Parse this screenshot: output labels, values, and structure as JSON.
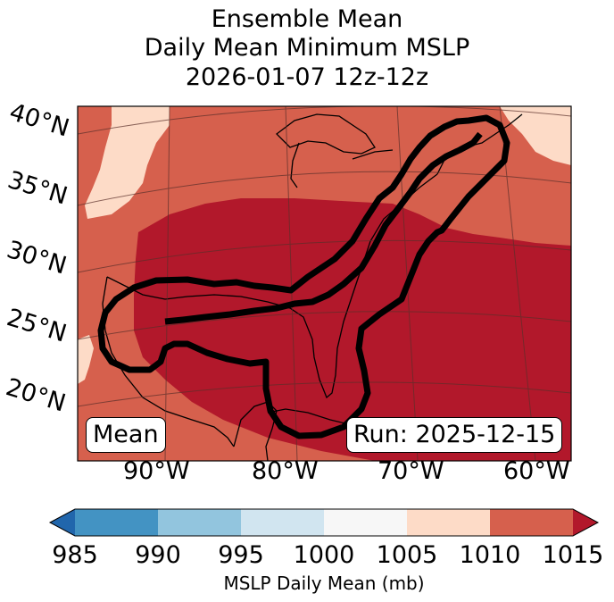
{
  "title": {
    "line1": "Ensemble Mean",
    "line2": "Daily Mean Minimum MSLP",
    "line3": "2026-01-07 12z-12z"
  },
  "map": {
    "latitude_labels": [
      "40°N",
      "35°N",
      "30°N",
      "25°N",
      "20°N"
    ],
    "longitude_labels": [
      "90°W",
      "80°W",
      "70°W",
      "60°W"
    ],
    "mean_box": "Mean",
    "run_box": "Run: 2025-12-15",
    "field_colors": {
      "1005_1010": "#fddbc7",
      "1010_1015": "#d6604d",
      "above_1015": "#b2182b"
    },
    "contour_color": "#000000"
  },
  "colorbar": {
    "ticks": [
      "985",
      "990",
      "995",
      "1000",
      "1005",
      "1010",
      "1015"
    ],
    "label": "MSLP Daily Mean (mb)",
    "bins": [
      {
        "range": "below 985",
        "color": "#2166ac"
      },
      {
        "range": "985-990",
        "color": "#4393c3"
      },
      {
        "range": "990-995",
        "color": "#92c5de"
      },
      {
        "range": "995-1000",
        "color": "#d1e5f0"
      },
      {
        "range": "1000-1005",
        "color": "#f7f7f7"
      },
      {
        "range": "1005-1010",
        "color": "#fddbc7"
      },
      {
        "range": "1010-1015",
        "color": "#d6604d"
      },
      {
        "range": "above 1015",
        "color": "#b2182b"
      }
    ]
  }
}
